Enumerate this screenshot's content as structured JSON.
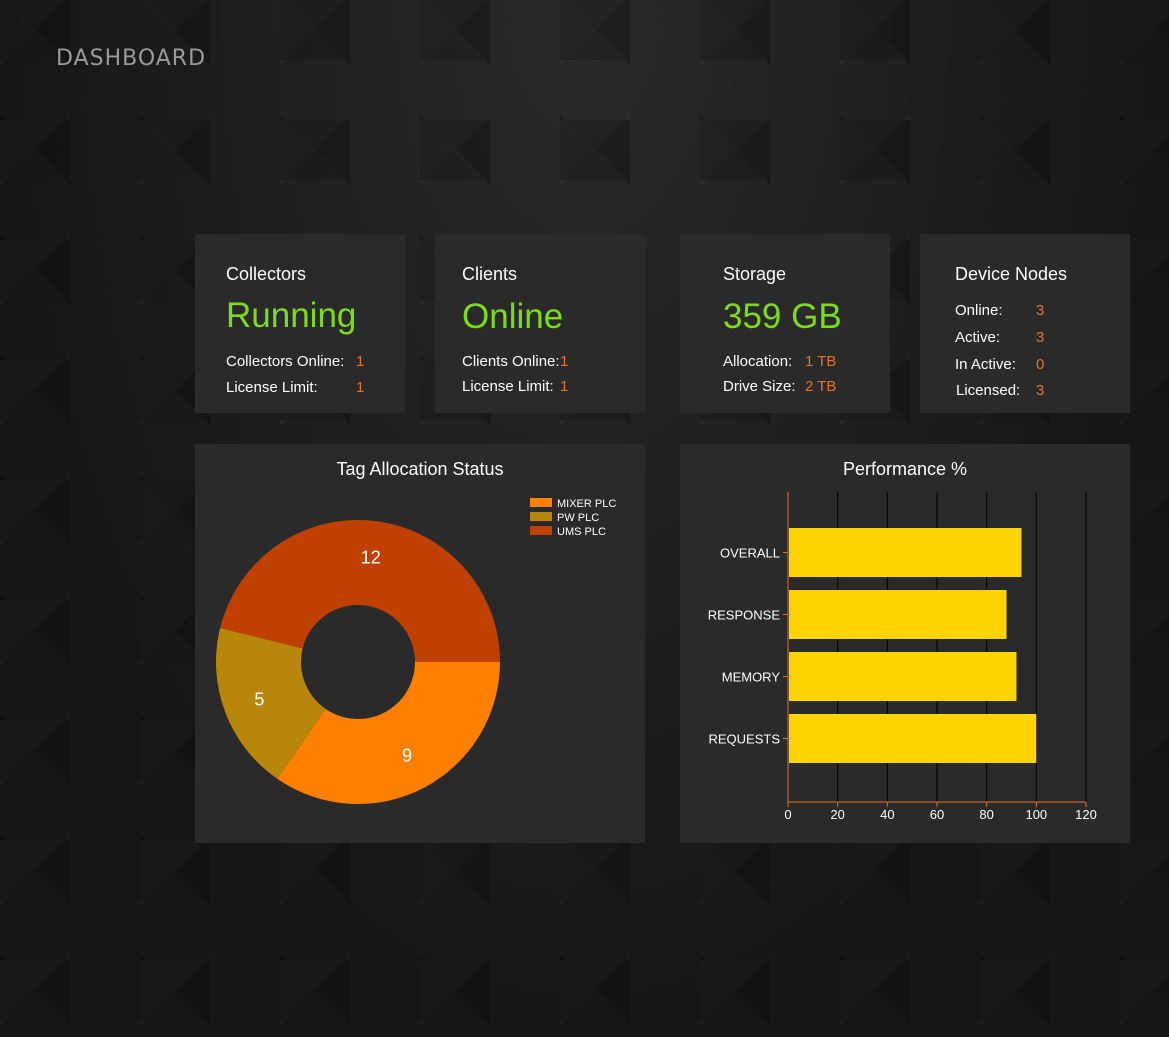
{
  "page_title": "DASHBOARD",
  "colors": {
    "accent_green": "#7cdc1a",
    "value_orange": "#e8731a",
    "bar_yellow": "#ffd400"
  },
  "collectors": {
    "title": "Collectors",
    "status": "Running",
    "rows": [
      {
        "label": "Collectors Online:",
        "value": "1"
      },
      {
        "label": "License Limit:",
        "value": "1"
      }
    ]
  },
  "clients": {
    "title": "Clients",
    "status": "Online",
    "rows": [
      {
        "label": "Clients Online:",
        "value": "1"
      },
      {
        "label": "License Limit:",
        "value": "1"
      }
    ]
  },
  "storage": {
    "title": "Storage",
    "status": "359 GB",
    "rows": [
      {
        "label": "Allocation:",
        "value": "1 TB"
      },
      {
        "label": "Drive Size:",
        "value": "2 TB"
      }
    ]
  },
  "device_nodes": {
    "title": "Device Nodes",
    "rows": [
      {
        "label": "Online:",
        "value": "3"
      },
      {
        "label": "Active:",
        "value": "3"
      },
      {
        "label": "In Active:",
        "value": "0"
      },
      {
        "label": "Licensed:",
        "value": "3"
      }
    ]
  },
  "chart_data": [
    {
      "type": "pie",
      "title": "Tag Allocation Status",
      "donut": true,
      "legend_position": "top-right",
      "categories": [
        "MIXER PLC",
        "PW PLC",
        "UMS PLC"
      ],
      "values": [
        9,
        5,
        12
      ],
      "colors": [
        "#ff7f00",
        "#b8860b",
        "#c04000"
      ]
    },
    {
      "type": "bar",
      "orientation": "horizontal",
      "title": "Performance %",
      "categories": [
        "OVERALL",
        "RESPONSE",
        "MEMORY",
        "REQUESTS"
      ],
      "values": [
        94,
        88,
        92,
        100
      ],
      "xlim": [
        0,
        120
      ],
      "xticks": [
        "0",
        "20",
        "40",
        "60",
        "80",
        "100",
        "120"
      ],
      "grid": true,
      "color": "#ffd400"
    }
  ]
}
